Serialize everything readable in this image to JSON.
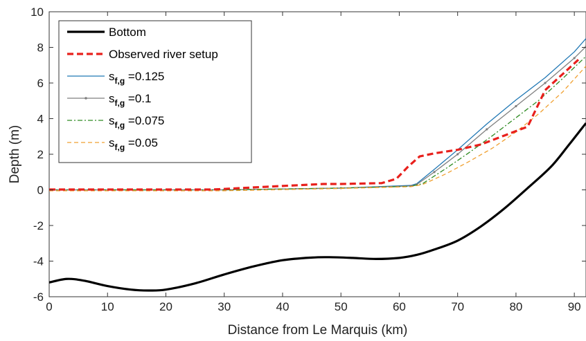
{
  "chart_data": {
    "type": "line",
    "xlabel": "Distance from Le Marquis (km)",
    "ylabel": "Depth (m)",
    "xlim": [
      0,
      92
    ],
    "ylim": [
      -6,
      10
    ],
    "xticks": [
      0,
      10,
      20,
      30,
      40,
      50,
      60,
      70,
      80,
      90
    ],
    "yticks": [
      -6,
      -4,
      -2,
      0,
      2,
      4,
      6,
      8,
      10
    ],
    "legend_position": "top-left",
    "series": [
      {
        "name": "Bottom",
        "legend_base": "Bottom",
        "legend_sub": "",
        "legend_suffix": "",
        "color": "#000000",
        "style": "solid-thick",
        "x": [
          0,
          3,
          6,
          10,
          14,
          17,
          20,
          25,
          30,
          35,
          40,
          45,
          48,
          52,
          56,
          60,
          63,
          66,
          70,
          74,
          78,
          82,
          86,
          89,
          92
        ],
        "y": [
          -5.2,
          -5.0,
          -5.1,
          -5.4,
          -5.6,
          -5.65,
          -5.6,
          -5.25,
          -4.75,
          -4.3,
          -3.95,
          -3.8,
          -3.78,
          -3.82,
          -3.88,
          -3.82,
          -3.65,
          -3.35,
          -2.85,
          -2.05,
          -1.05,
          0.1,
          1.3,
          2.5,
          3.75
        ]
      },
      {
        "name": "Observed river setup",
        "legend_base": "Observed river setup",
        "legend_sub": "",
        "legend_suffix": "",
        "color": "#e8201c",
        "style": "dashed-thick",
        "x": [
          0,
          28,
          40,
          47,
          50,
          57,
          59.5,
          61.5,
          63.5,
          66,
          70,
          74,
          78,
          82,
          85,
          88,
          91
        ],
        "y": [
          0.02,
          0.02,
          0.22,
          0.33,
          0.33,
          0.38,
          0.62,
          1.3,
          1.88,
          2.05,
          2.25,
          2.55,
          3.05,
          3.55,
          5.6,
          6.5,
          7.4
        ]
      },
      {
        "name": "s_f,g=0.125",
        "legend_base": "s",
        "legend_sub": "f,g",
        "legend_suffix": " =0.125",
        "color": "#1f77b4",
        "style": "solid",
        "x": [
          0,
          30,
          50,
          62,
          63,
          66,
          70,
          75,
          80,
          85,
          90,
          92
        ],
        "y": [
          0.0,
          0.0,
          0.1,
          0.25,
          0.35,
          1.15,
          2.25,
          3.7,
          5.05,
          6.3,
          7.75,
          8.5
        ]
      },
      {
        "name": "s_f,g=0.1",
        "legend_base": "s",
        "legend_sub": "f,g",
        "legend_suffix": " =0.1",
        "color": "#7f7f7f",
        "style": "solid-dots",
        "x": [
          0,
          30,
          50,
          62,
          63,
          66,
          70,
          75,
          80,
          85,
          90,
          92
        ],
        "y": [
          0.0,
          0.0,
          0.1,
          0.22,
          0.3,
          1.0,
          2.0,
          3.4,
          4.7,
          6.0,
          7.4,
          8.05
        ]
      },
      {
        "name": "s_f,g=0.075",
        "legend_base": "s",
        "legend_sub": "f,g",
        "legend_suffix": " =0.075",
        "color": "#2e8b22",
        "style": "dashdot",
        "x": [
          0,
          30,
          50,
          62,
          64,
          68,
          72,
          76,
          80,
          84,
          88,
          92
        ],
        "y": [
          0.0,
          0.0,
          0.1,
          0.2,
          0.35,
          1.2,
          2.1,
          3.05,
          4.05,
          5.05,
          6.25,
          7.5
        ]
      },
      {
        "name": "s_f,g=0.05",
        "legend_base": "s",
        "legend_sub": "f,g",
        "legend_suffix": " =0.05",
        "color": "#f0a030",
        "style": "dashed",
        "x": [
          0,
          30,
          50,
          62,
          64,
          68,
          72,
          76,
          80,
          84,
          88,
          92
        ],
        "y": [
          -0.05,
          -0.05,
          0.08,
          0.18,
          0.3,
          0.9,
          1.6,
          2.35,
          3.25,
          4.3,
          5.5,
          6.95
        ]
      }
    ]
  }
}
